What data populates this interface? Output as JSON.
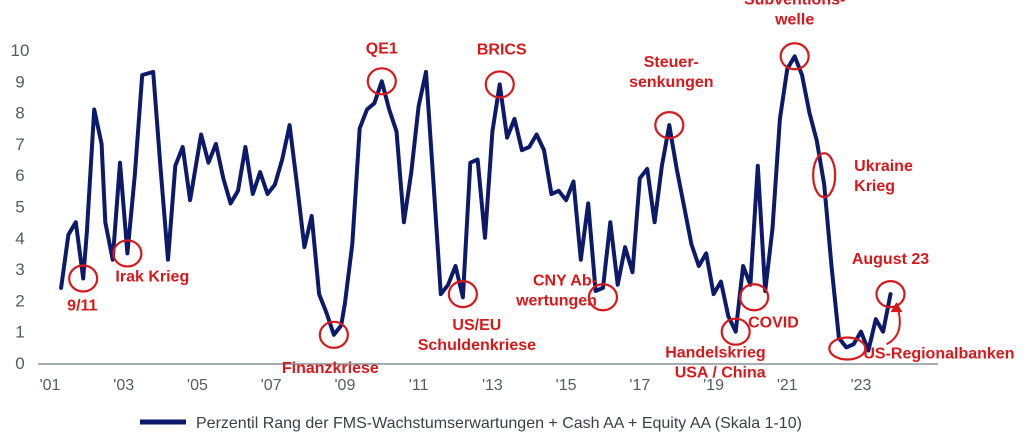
{
  "chart_data": {
    "type": "line",
    "ylim": [
      0,
      10
    ],
    "xlim": [
      2001.0,
      2024.6
    ],
    "y_ticks": [
      "0",
      "1",
      "2",
      "3",
      "4",
      "5",
      "6",
      "7",
      "8",
      "9",
      "10"
    ],
    "x_ticks": [
      {
        "label": "'01",
        "year": 2001
      },
      {
        "label": "'03",
        "year": 2003
      },
      {
        "label": "'05",
        "year": 2005
      },
      {
        "label": "'07",
        "year": 2007
      },
      {
        "label": "'09",
        "year": 2009
      },
      {
        "label": "'11",
        "year": 2011
      },
      {
        "label": "'13",
        "year": 2013
      },
      {
        "label": "'15",
        "year": 2015
      },
      {
        "label": "'17",
        "year": 2017
      },
      {
        "label": "'19",
        "year": 2019
      },
      {
        "label": "'21",
        "year": 2021
      },
      {
        "label": "'23",
        "year": 2023
      }
    ],
    "grid": false,
    "legend": "bottom",
    "series": [
      {
        "name": "Perzentil Rang der FMS-Wachstumserwartungen + Cash AA + Equity AA (Skala 1-10)",
        "color": "#0d1a6b",
        "x": [
          2001.3,
          2001.5,
          2001.7,
          2001.9,
          2002.0,
          2002.2,
          2002.4,
          2002.5,
          2002.7,
          2002.9,
          2003.1,
          2003.3,
          2003.5,
          2003.8,
          2004.0,
          2004.2,
          2004.4,
          2004.6,
          2004.8,
          2005.1,
          2005.3,
          2005.5,
          2005.7,
          2005.9,
          2006.1,
          2006.3,
          2006.5,
          2006.7,
          2006.9,
          2007.1,
          2007.3,
          2007.5,
          2007.7,
          2007.9,
          2008.1,
          2008.3,
          2008.5,
          2008.7,
          2008.9,
          2009.0,
          2009.2,
          2009.4,
          2009.6,
          2009.8,
          2010.0,
          2010.2,
          2010.4,
          2010.6,
          2010.8,
          2011.0,
          2011.2,
          2011.4,
          2011.6,
          2011.8,
          2012.0,
          2012.2,
          2012.4,
          2012.6,
          2012.8,
          2013.0,
          2013.2,
          2013.4,
          2013.6,
          2013.8,
          2014.0,
          2014.2,
          2014.4,
          2014.6,
          2014.8,
          2015.0,
          2015.2,
          2015.4,
          2015.6,
          2015.8,
          2016.0,
          2016.2,
          2016.4,
          2016.6,
          2016.8,
          2017.0,
          2017.2,
          2017.4,
          2017.6,
          2017.8,
          2018.0,
          2018.2,
          2018.4,
          2018.6,
          2018.8,
          2019.0,
          2019.2,
          2019.4,
          2019.6,
          2019.8,
          2020.0,
          2020.2,
          2020.4,
          2020.6,
          2020.8,
          2021.0,
          2021.2,
          2021.4,
          2021.6,
          2021.8,
          2022.0,
          2022.2,
          2022.4,
          2022.6,
          2022.8,
          2023.0,
          2023.2,
          2023.4,
          2023.6,
          2023.8
        ],
        "y": [
          2.4,
          4.1,
          4.5,
          2.7,
          4.2,
          8.1,
          7.0,
          4.5,
          3.3,
          6.4,
          3.5,
          6.0,
          9.2,
          9.3,
          6.2,
          3.3,
          6.3,
          6.9,
          5.2,
          7.3,
          6.4,
          7.0,
          5.9,
          5.1,
          5.5,
          6.9,
          5.4,
          6.1,
          5.4,
          5.7,
          6.5,
          7.6,
          5.7,
          3.7,
          4.7,
          2.2,
          1.6,
          0.9,
          1.2,
          1.9,
          3.8,
          7.5,
          8.1,
          8.3,
          9.0,
          8.1,
          7.4,
          4.5,
          6.1,
          8.2,
          9.3,
          5.8,
          2.2,
          2.5,
          3.1,
          2.1,
          6.4,
          6.5,
          4.0,
          7.4,
          8.9,
          7.2,
          7.8,
          6.8,
          6.9,
          7.3,
          6.8,
          5.4,
          5.5,
          5.2,
          5.8,
          3.3,
          5.1,
          2.3,
          2.4,
          4.5,
          2.5,
          3.7,
          2.9,
          5.9,
          6.2,
          4.5,
          6.3,
          7.6,
          6.2,
          5.0,
          3.8,
          3.1,
          3.5,
          2.2,
          2.6,
          1.5,
          1.0,
          3.1,
          2.5,
          6.3,
          2.3,
          4.3,
          7.8,
          9.4,
          9.8,
          9.2,
          8.0,
          7.1,
          5.7,
          3.1,
          0.8,
          0.5,
          0.6,
          1.0,
          0.4,
          1.4,
          1.0,
          2.2
        ]
      }
    ],
    "annotations": [
      {
        "lines": [
          "9/11"
        ],
        "x": 2001.9,
        "y": 2.7,
        "anchor": "start"
      },
      {
        "lines": [
          "Irak Krieg"
        ],
        "x": 2003.1,
        "y": 3.5,
        "anchor": "start"
      },
      {
        "lines": [
          "Finanzkriese"
        ],
        "x": 2008.7,
        "y": 0.9,
        "anchor": "start"
      },
      {
        "lines": [
          "QE1"
        ],
        "x": 2010.0,
        "y": 9.0,
        "anchor": "middle"
      },
      {
        "lines": [
          "US/EU",
          "Schuldenkriese"
        ],
        "x": 2012.2,
        "y": 2.2,
        "anchor": "middle"
      },
      {
        "lines": [
          "BRICS"
        ],
        "x": 2013.2,
        "y": 8.9,
        "anchor": "middle"
      },
      {
        "lines": [
          "CNY Ab-",
          "wertungen"
        ],
        "x": 2016.0,
        "y": 2.1,
        "anchor": "end"
      },
      {
        "lines": [
          "Steuer-",
          "senkungen"
        ],
        "x": 2017.8,
        "y": 7.6,
        "anchor": "middle"
      },
      {
        "lines": [
          "Handelskrieg",
          "USA / China"
        ],
        "x": 2019.6,
        "y": 1.0,
        "anchor": "end"
      },
      {
        "lines": [
          "COVID"
        ],
        "x": 2020.1,
        "y": 2.1,
        "anchor": "start"
      },
      {
        "lines": [
          "Subventions-",
          "welle"
        ],
        "x": 2021.2,
        "y": 9.8,
        "anchor": "middle"
      },
      {
        "lines": [
          "Ukraine",
          "Krieg"
        ],
        "x": 2022.0,
        "y": 6.0,
        "anchor": "start"
      },
      {
        "lines": [
          "August 23"
        ],
        "x": 2023.8,
        "y": 2.2,
        "anchor": "middle"
      },
      {
        "lines": [
          "US-Regionalbanken"
        ],
        "x": 2022.9,
        "y": 0.4,
        "anchor": "start"
      }
    ]
  }
}
